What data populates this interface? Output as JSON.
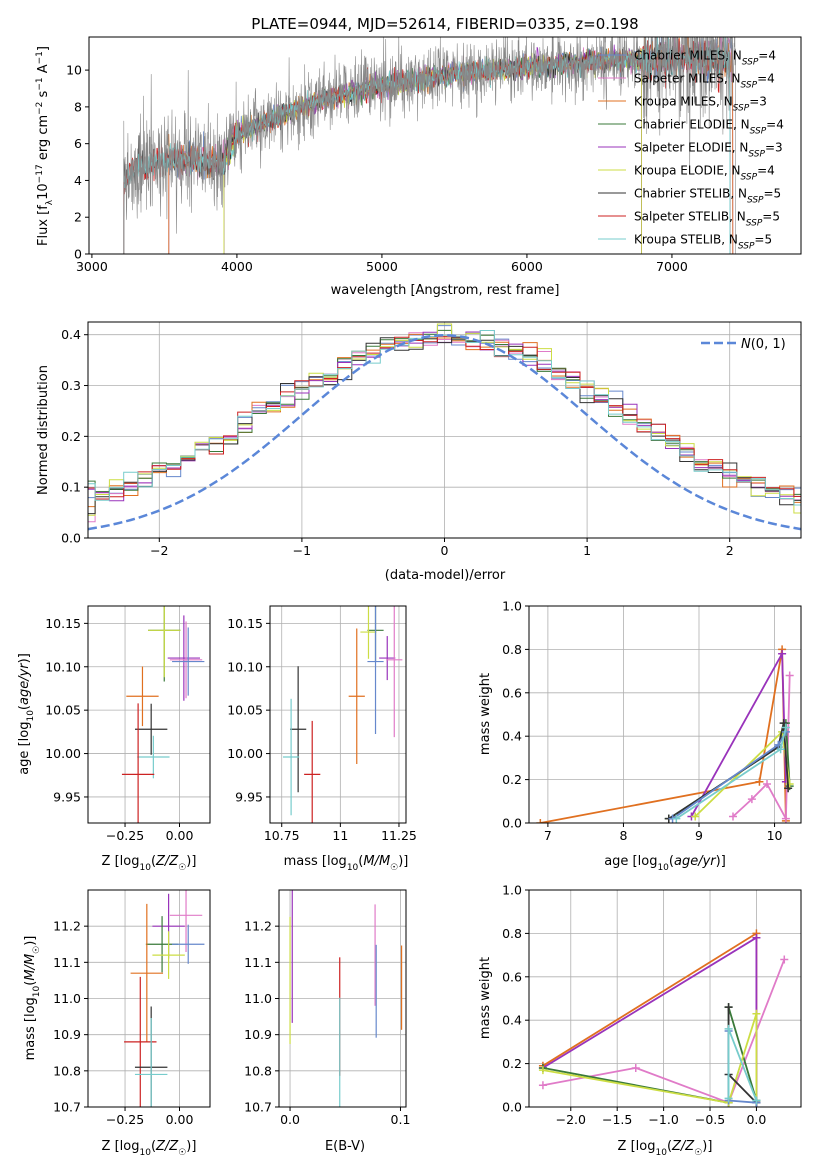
{
  "chart_data": [
    {
      "type": "line",
      "title": "PLATE=0944, MJD=52614, FIBERID=0335, z=0.198",
      "xlabel": "wavelength [Angstrom, rest frame]",
      "ylabel": "Flux [f_λ 10⁻¹⁷ erg cm⁻² s⁻¹ A⁻¹]",
      "xlim": [
        2980,
        7890
      ],
      "ylim": [
        0,
        11.8
      ],
      "xticks": [
        3000,
        4000,
        5000,
        6000,
        7000
      ],
      "yticks": [
        0,
        2,
        4,
        6,
        8,
        10
      ],
      "grid": false,
      "legend_position": "top-right",
      "legend": [
        "Chabrier MILES, N_SSP=4",
        "Salpeter MILES, N_SSP=4",
        "Kroupa MILES, N_SSP=3",
        "Chabrier ELODIE, N_SSP=4",
        "Salpeter ELODIE, N_SSP=3",
        "Kroupa ELODIE, N_SSP=4",
        "Chabrier STELIB, N_SSP=5",
        "Salpeter STELIB, N_SSP=5",
        "Kroupa STELIB, N_SSP=5"
      ],
      "series": [
        {
          "name": "Chabrier MILES, N_SSP=4",
          "color": "#6688cc",
          "x_range": [
            3530,
            7420
          ]
        },
        {
          "name": "Salpeter MILES, N_SSP=4",
          "color": "#e07bc8",
          "x_range": [
            3530,
            7420
          ]
        },
        {
          "name": "Kroupa MILES, N_SSP=3",
          "color": "#e07020",
          "x_range": [
            3530,
            7420
          ]
        },
        {
          "name": "Chabrier ELODIE, N_SSP=4",
          "color": "#3a7a3a",
          "x_range": [
            3910,
            6790
          ]
        },
        {
          "name": "Salpeter ELODIE, N_SSP=3",
          "color": "#9933bb",
          "x_range": [
            3910,
            6790
          ]
        },
        {
          "name": "Kroupa ELODIE, N_SSP=4",
          "color": "#ccdd44",
          "x_range": [
            3910,
            6790
          ]
        },
        {
          "name": "Chabrier STELIB, N_SSP=5",
          "color": "#333333",
          "x_range": [
            3220,
            7400
          ]
        },
        {
          "name": "Salpeter STELIB, N_SSP=5",
          "color": "#cc2222",
          "x_range": [
            3220,
            7400
          ]
        },
        {
          "name": "Kroupa STELIB, N_SSP=5",
          "color": "#77cccc",
          "x_range": [
            3220,
            7400
          ]
        },
        {
          "name": "",
          "color": "#888888",
          "x_range": [
            3220,
            7440
          ],
          "description": "observed"
        }
      ],
      "continuum_points": [
        [
          3220,
          3.8
        ],
        [
          3300,
          4.7
        ],
        [
          3500,
          5.0
        ],
        [
          3700,
          5.2
        ],
        [
          3900,
          4.9
        ],
        [
          4000,
          6.5
        ],
        [
          4200,
          7.2
        ],
        [
          4500,
          8.2
        ],
        [
          4800,
          8.8
        ],
        [
          5000,
          9.2
        ],
        [
          5500,
          9.8
        ],
        [
          6000,
          10.2
        ],
        [
          6500,
          10.5
        ],
        [
          7000,
          10.6
        ],
        [
          7400,
          10.7
        ]
      ]
    },
    {
      "type": "line",
      "title": "",
      "xlabel": "(data-model)/error",
      "ylabel": "Normed distribution",
      "xlim": [
        -2.5,
        2.5
      ],
      "ylim": [
        0,
        0.425
      ],
      "xticks": [
        -2,
        -1,
        0,
        1,
        2
      ],
      "yticks": [
        0.0,
        0.1,
        0.2,
        0.3,
        0.4
      ],
      "grid": true,
      "legend_position": "top-right",
      "legend": [
        "N(0,1)"
      ],
      "normal_curve": {
        "mean": 0,
        "sigma": 1,
        "color": "#5b87d8"
      },
      "histogram_bin_width": 0.1,
      "histogram_colors": [
        "#6688cc",
        "#e07bc8",
        "#e07020",
        "#3a7a3a",
        "#9933bb",
        "#ccdd44",
        "#333333",
        "#cc2222",
        "#77cccc"
      ]
    },
    {
      "type": "scatter",
      "xlabel": "Z [log₁₀(Z/Z☉)]",
      "ylabel": "age  [log₁₀(age/yr)]",
      "xlim": [
        -0.42,
        0.14
      ],
      "ylim": [
        9.92,
        10.17
      ],
      "xticks": [
        -0.25,
        0.0
      ],
      "yticks": [
        9.95,
        10.0,
        10.05,
        10.1,
        10.15
      ],
      "grid": true,
      "points": [
        {
          "x": -0.07,
          "y": 10.142,
          "color": "#3a7a3a"
        },
        {
          "x": -0.07,
          "y": 10.142,
          "color": "#ccdd44"
        },
        {
          "x": 0.02,
          "y": 10.11,
          "color": "#9933bb"
        },
        {
          "x": 0.03,
          "y": 10.108,
          "color": "#e07bc8"
        },
        {
          "x": 0.04,
          "y": 10.106,
          "color": "#6688cc"
        },
        {
          "x": -0.17,
          "y": 10.066,
          "color": "#e07020"
        },
        {
          "x": -0.13,
          "y": 10.028,
          "color": "#333333"
        },
        {
          "x": -0.12,
          "y": 9.996,
          "color": "#77cccc"
        },
        {
          "x": -0.19,
          "y": 9.976,
          "color": "#cc2222"
        }
      ]
    },
    {
      "type": "scatter",
      "xlabel": "mass [log₁₀(M/M☉)]",
      "ylabel": "",
      "xlim": [
        10.7,
        11.28
      ],
      "ylim": [
        9.92,
        10.17
      ],
      "xticks": [
        10.75,
        11.0,
        11.25
      ],
      "yticks": [
        9.95,
        10.0,
        10.05,
        10.1,
        10.15
      ],
      "grid": true,
      "points": [
        {
          "x": 11.15,
          "y": 10.142,
          "color": "#3a7a3a"
        },
        {
          "x": 11.12,
          "y": 10.14,
          "color": "#ccdd44"
        },
        {
          "x": 11.2,
          "y": 10.11,
          "color": "#9933bb"
        },
        {
          "x": 11.23,
          "y": 10.108,
          "color": "#e07bc8"
        },
        {
          "x": 11.15,
          "y": 10.106,
          "color": "#6688cc"
        },
        {
          "x": 11.07,
          "y": 10.066,
          "color": "#e07020"
        },
        {
          "x": 10.82,
          "y": 10.028,
          "color": "#333333"
        },
        {
          "x": 10.79,
          "y": 9.996,
          "color": "#77cccc"
        },
        {
          "x": 10.88,
          "y": 9.976,
          "color": "#cc2222"
        }
      ]
    },
    {
      "type": "line",
      "xlabel": "age  [log₁₀(age/yr)]",
      "ylabel": "mass weight",
      "xlim": [
        6.75,
        10.35
      ],
      "ylim": [
        0,
        1.0
      ],
      "xticks": [
        7,
        8,
        9,
        10
      ],
      "yticks": [
        0.0,
        0.2,
        0.4,
        0.6,
        0.8,
        1.0
      ],
      "grid": true,
      "series": [
        {
          "name": "",
          "color": "#e07020",
          "x": [
            6.9,
            9.8,
            10.1,
            10.15
          ],
          "y": [
            0.0,
            0.19,
            0.8,
            0.01
          ]
        },
        {
          "name": "",
          "color": "#9933bb",
          "x": [
            8.9,
            10.1,
            10.15
          ],
          "y": [
            0.03,
            0.78,
            0.19
          ]
        },
        {
          "name": "",
          "color": "#e07bc8",
          "x": [
            9.45,
            9.7,
            9.9,
            10.15,
            10.2
          ],
          "y": [
            0.03,
            0.11,
            0.18,
            0.02,
            0.68
          ]
        },
        {
          "name": "",
          "color": "#3a7a3a",
          "x": [
            8.6,
            10.05,
            10.15,
            10.2
          ],
          "y": [
            0.02,
            0.35,
            0.46,
            0.17
          ]
        },
        {
          "name": "",
          "color": "#ccdd44",
          "x": [
            8.95,
            10.1,
            10.2
          ],
          "y": [
            0.03,
            0.42,
            0.18
          ]
        },
        {
          "name": "",
          "color": "#333333",
          "x": [
            8.6,
            10.05,
            10.12,
            10.18
          ],
          "y": [
            0.02,
            0.35,
            0.46,
            0.16
          ]
        },
        {
          "name": "",
          "color": "#6688cc",
          "x": [
            8.65,
            10.05,
            10.15
          ],
          "y": [
            0.02,
            0.36,
            0.42
          ]
        },
        {
          "name": "",
          "color": "#77cccc",
          "x": [
            8.7,
            10.08,
            10.15
          ],
          "y": [
            0.02,
            0.34,
            0.44
          ]
        }
      ]
    },
    {
      "type": "scatter",
      "xlabel": "Z [log₁₀(Z/Z☉)]",
      "ylabel": "mass [log₁₀(M/M☉)]",
      "xlim": [
        -0.42,
        0.14
      ],
      "ylim": [
        10.7,
        11.3
      ],
      "xticks": [
        -0.25,
        0.0
      ],
      "yticks": [
        10.7,
        10.8,
        10.9,
        11.0,
        11.1,
        11.2
      ],
      "grid": true,
      "points": [
        {
          "x": 0.03,
          "y": 11.23,
          "color": "#e07bc8"
        },
        {
          "x": -0.05,
          "y": 11.2,
          "color": "#9933bb"
        },
        {
          "x": -0.08,
          "y": 11.15,
          "color": "#3a7a3a"
        },
        {
          "x": -0.05,
          "y": 11.12,
          "color": "#ccdd44"
        },
        {
          "x": 0.04,
          "y": 11.15,
          "color": "#6688cc"
        },
        {
          "x": -0.15,
          "y": 11.07,
          "color": "#e07020"
        },
        {
          "x": -0.18,
          "y": 10.88,
          "color": "#cc2222"
        },
        {
          "x": -0.13,
          "y": 10.81,
          "color": "#333333"
        },
        {
          "x": -0.13,
          "y": 10.79,
          "color": "#77cccc"
        }
      ]
    },
    {
      "type": "scatter",
      "xlabel": "E(B-V)",
      "ylabel": "",
      "xlim": [
        -0.01,
        0.105
      ],
      "ylim": [
        10.7,
        11.3
      ],
      "xticks": [
        0.0,
        0.1
      ],
      "yticks": [
        10.7,
        10.8,
        10.9,
        11.0,
        11.1,
        11.2
      ],
      "grid": true,
      "points": [
        {
          "x": 0.002,
          "y": 11.12,
          "color": "#9933bb"
        },
        {
          "x": 0.0,
          "y": 11.05,
          "color": "#ccdd44"
        },
        {
          "x": 0.045,
          "y": 10.95,
          "color": "#cc2222"
        },
        {
          "x": 0.045,
          "y": 10.85,
          "color": "#77cccc"
        },
        {
          "x": 0.077,
          "y": 11.12,
          "color": "#e07bc8"
        },
        {
          "x": 0.078,
          "y": 11.02,
          "color": "#6688cc"
        },
        {
          "x": 0.101,
          "y": 11.03,
          "color": "#e07020"
        }
      ]
    },
    {
      "type": "line",
      "xlabel": "Z [log₁₀(Z/Z☉)]",
      "ylabel": "mass weight",
      "xlim": [
        -2.45,
        0.48
      ],
      "ylim": [
        0,
        1.0
      ],
      "xticks": [
        -2.0,
        -1.5,
        -1.0,
        -0.5,
        0.0
      ],
      "yticks": [
        0.0,
        0.2,
        0.4,
        0.6,
        0.8,
        1.0
      ],
      "grid": true,
      "series": [
        {
          "name": "",
          "color": "#e07020",
          "x": [
            -2.3,
            0.0,
            0.0
          ],
          "y": [
            0.19,
            0.8,
            0.02
          ]
        },
        {
          "name": "",
          "color": "#9933bb",
          "x": [
            -2.3,
            0.0,
            0.0
          ],
          "y": [
            0.18,
            0.78,
            0.02
          ]
        },
        {
          "name": "",
          "color": "#e07bc8",
          "x": [
            -2.3,
            -1.3,
            -0.3,
            0.3
          ],
          "y": [
            0.1,
            0.18,
            0.02,
            0.68
          ]
        },
        {
          "name": "",
          "color": "#3a7a3a",
          "x": [
            -2.3,
            -0.3,
            -0.3,
            0.0
          ],
          "y": [
            0.18,
            0.02,
            0.46,
            0.03
          ]
        },
        {
          "name": "",
          "color": "#ccdd44",
          "x": [
            -2.3,
            -0.3,
            0.0,
            0.0
          ],
          "y": [
            0.17,
            0.02,
            0.43,
            0.02
          ]
        },
        {
          "name": "",
          "color": "#333333",
          "x": [
            -0.3,
            -0.3,
            0.0
          ],
          "y": [
            0.46,
            0.15,
            0.02
          ]
        },
        {
          "name": "",
          "color": "#6688cc",
          "x": [
            -0.3,
            -0.3,
            0.0
          ],
          "y": [
            0.35,
            0.03,
            0.02
          ]
        },
        {
          "name": "",
          "color": "#77cccc",
          "x": [
            -0.3,
            -0.3,
            0.0
          ],
          "y": [
            0.04,
            0.36,
            0.03
          ]
        }
      ]
    }
  ]
}
